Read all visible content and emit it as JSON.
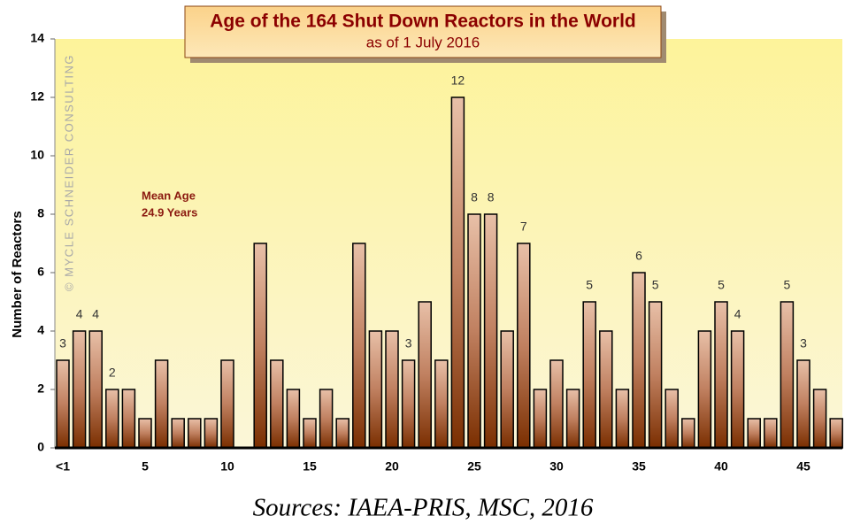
{
  "chart_data": {
    "type": "bar",
    "title": "Age of the 164 Shut Down Reactors in the World",
    "subtitle": "as of 1 July 2016",
    "y_label": "Number of Reactors",
    "watermark": "© MYCLE SCHNEIDER CONSULTING",
    "annotation": [
      "Mean Age",
      "24.9 Years"
    ],
    "source": "Sources: IAEA-PRIS, MSC, 2016",
    "categories": [
      "<1",
      null,
      null,
      null,
      null,
      5,
      null,
      null,
      null,
      null,
      10,
      null,
      null,
      null,
      null,
      15,
      null,
      null,
      null,
      null,
      20,
      null,
      null,
      null,
      null,
      25,
      null,
      null,
      null,
      null,
      30,
      null,
      null,
      null,
      null,
      35,
      null,
      null,
      null,
      null,
      40,
      null,
      null,
      null,
      null,
      45,
      null,
      null
    ],
    "values": [
      3,
      4,
      4,
      2,
      2,
      1,
      3,
      1,
      1,
      1,
      3,
      0,
      7,
      3,
      2,
      1,
      2,
      1,
      7,
      4,
      4,
      3,
      5,
      3,
      12,
      8,
      8,
      4,
      7,
      2,
      3,
      2,
      5,
      4,
      2,
      6,
      5,
      2,
      1,
      4,
      5,
      4,
      1,
      1,
      5,
      3,
      2,
      1
    ],
    "value_labels": [
      3,
      4,
      4,
      2,
      null,
      null,
      null,
      null,
      null,
      null,
      null,
      null,
      null,
      null,
      null,
      null,
      null,
      null,
      null,
      null,
      null,
      3,
      null,
      null,
      12,
      8,
      8,
      null,
      7,
      null,
      null,
      null,
      5,
      null,
      null,
      6,
      5,
      null,
      null,
      null,
      5,
      4,
      null,
      null,
      5,
      3,
      null,
      null
    ],
    "ylim": [
      0,
      14
    ],
    "yticks": [
      0,
      2,
      4,
      6,
      8,
      10,
      12,
      14
    ],
    "grid": false
  }
}
